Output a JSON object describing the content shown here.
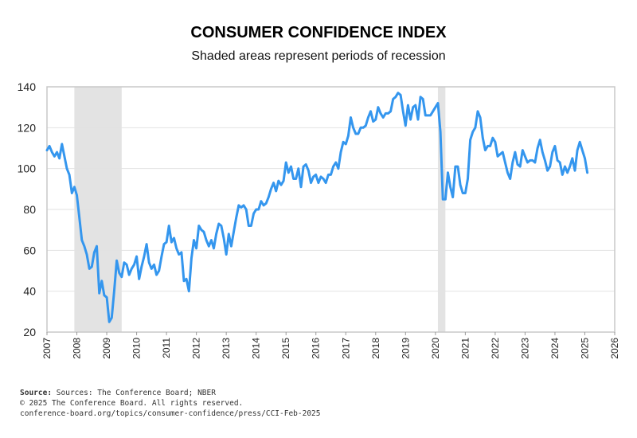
{
  "chart_data": {
    "type": "line",
    "title": "CONSUMER CONFIDENCE INDEX",
    "subtitle": "Shaded areas represent periods of recession",
    "xlabel": "",
    "ylabel": "",
    "xlim": [
      2007,
      2026
    ],
    "ylim": [
      20,
      140
    ],
    "x_ticks": [
      "2007",
      "2008",
      "2009",
      "2010",
      "2011",
      "2012",
      "2013",
      "2014",
      "2015",
      "2016",
      "2017",
      "2018",
      "2019",
      "2020",
      "2021",
      "2022",
      "2023",
      "2024",
      "2025",
      "2026"
    ],
    "y_ticks": [
      20,
      40,
      60,
      80,
      100,
      120,
      140
    ],
    "grid": "horizontal",
    "line_color": "#3496EE",
    "recession_color": "#E3E3E3",
    "recessions": [
      [
        "2007-12",
        "2009-06"
      ],
      [
        "2020-02",
        "2020-04"
      ]
    ],
    "points": [
      [
        "2007-01",
        109
      ],
      [
        "2007-02",
        111
      ],
      [
        "2007-03",
        108
      ],
      [
        "2007-04",
        106
      ],
      [
        "2007-05",
        108
      ],
      [
        "2007-06",
        105
      ],
      [
        "2007-07",
        112
      ],
      [
        "2007-08",
        106
      ],
      [
        "2007-09",
        100
      ],
      [
        "2007-10",
        97
      ],
      [
        "2007-11",
        88
      ],
      [
        "2007-12",
        91
      ],
      [
        "2008-01",
        87
      ],
      [
        "2008-02",
        76
      ],
      [
        "2008-03",
        65
      ],
      [
        "2008-04",
        62
      ],
      [
        "2008-05",
        58
      ],
      [
        "2008-06",
        51
      ],
      [
        "2008-07",
        52
      ],
      [
        "2008-08",
        59
      ],
      [
        "2008-09",
        62
      ],
      [
        "2008-10",
        39
      ],
      [
        "2008-11",
        45
      ],
      [
        "2008-12",
        38
      ],
      [
        "2009-01",
        37
      ],
      [
        "2009-02",
        25
      ],
      [
        "2009-03",
        27
      ],
      [
        "2009-04",
        40
      ],
      [
        "2009-05",
        55
      ],
      [
        "2009-06",
        49
      ],
      [
        "2009-07",
        47
      ],
      [
        "2009-08",
        54
      ],
      [
        "2009-09",
        53
      ],
      [
        "2009-10",
        48
      ],
      [
        "2009-11",
        51
      ],
      [
        "2009-12",
        53
      ],
      [
        "2010-01",
        57
      ],
      [
        "2010-02",
        46
      ],
      [
        "2010-03",
        52
      ],
      [
        "2010-04",
        57
      ],
      [
        "2010-05",
        63
      ],
      [
        "2010-06",
        54
      ],
      [
        "2010-07",
        51
      ],
      [
        "2010-08",
        53
      ],
      [
        "2010-09",
        48
      ],
      [
        "2010-10",
        50
      ],
      [
        "2010-11",
        57
      ],
      [
        "2010-12",
        63
      ],
      [
        "2011-01",
        64
      ],
      [
        "2011-02",
        72
      ],
      [
        "2011-03",
        64
      ],
      [
        "2011-04",
        66
      ],
      [
        "2011-05",
        61
      ],
      [
        "2011-06",
        58
      ],
      [
        "2011-07",
        59
      ],
      [
        "2011-08",
        45
      ],
      [
        "2011-09",
        46
      ],
      [
        "2011-10",
        40
      ],
      [
        "2011-11",
        56
      ],
      [
        "2011-12",
        65
      ],
      [
        "2012-01",
        61
      ],
      [
        "2012-02",
        72
      ],
      [
        "2012-03",
        70
      ],
      [
        "2012-04",
        69
      ],
      [
        "2012-05",
        65
      ],
      [
        "2012-06",
        62
      ],
      [
        "2012-07",
        65
      ],
      [
        "2012-08",
        61
      ],
      [
        "2012-09",
        68
      ],
      [
        "2012-10",
        73
      ],
      [
        "2012-11",
        72
      ],
      [
        "2012-12",
        66
      ],
      [
        "2013-01",
        58
      ],
      [
        "2013-02",
        68
      ],
      [
        "2013-03",
        62
      ],
      [
        "2013-04",
        69
      ],
      [
        "2013-05",
        76
      ],
      [
        "2013-06",
        82
      ],
      [
        "2013-07",
        81
      ],
      [
        "2013-08",
        82
      ],
      [
        "2013-09",
        80
      ],
      [
        "2013-10",
        72
      ],
      [
        "2013-11",
        72
      ],
      [
        "2013-12",
        78
      ],
      [
        "2014-01",
        80
      ],
      [
        "2014-02",
        80
      ],
      [
        "2014-03",
        84
      ],
      [
        "2014-04",
        82
      ],
      [
        "2014-05",
        83
      ],
      [
        "2014-06",
        86
      ],
      [
        "2014-07",
        90
      ],
      [
        "2014-08",
        93
      ],
      [
        "2014-09",
        89
      ],
      [
        "2014-10",
        94
      ],
      [
        "2014-11",
        92
      ],
      [
        "2014-12",
        94
      ],
      [
        "2015-01",
        103
      ],
      [
        "2015-02",
        98
      ],
      [
        "2015-03",
        101
      ],
      [
        "2015-04",
        95
      ],
      [
        "2015-05",
        95
      ],
      [
        "2015-06",
        100
      ],
      [
        "2015-07",
        91
      ],
      [
        "2015-08",
        101
      ],
      [
        "2015-09",
        102
      ],
      [
        "2015-10",
        99
      ],
      [
        "2015-11",
        93
      ],
      [
        "2015-12",
        96
      ],
      [
        "2016-01",
        97
      ],
      [
        "2016-02",
        93
      ],
      [
        "2016-03",
        96
      ],
      [
        "2016-04",
        95
      ],
      [
        "2016-05",
        93
      ],
      [
        "2016-06",
        97
      ],
      [
        "2016-07",
        97
      ],
      [
        "2016-08",
        101
      ],
      [
        "2016-09",
        103
      ],
      [
        "2016-10",
        100
      ],
      [
        "2016-11",
        108
      ],
      [
        "2016-12",
        113
      ],
      [
        "2017-01",
        112
      ],
      [
        "2017-02",
        116
      ],
      [
        "2017-03",
        125
      ],
      [
        "2017-04",
        120
      ],
      [
        "2017-05",
        117
      ],
      [
        "2017-06",
        117
      ],
      [
        "2017-07",
        120
      ],
      [
        "2017-08",
        120
      ],
      [
        "2017-09",
        121
      ],
      [
        "2017-10",
        125
      ],
      [
        "2017-11",
        128
      ],
      [
        "2017-12",
        123
      ],
      [
        "2018-01",
        124
      ],
      [
        "2018-02",
        130
      ],
      [
        "2018-03",
        127
      ],
      [
        "2018-04",
        125
      ],
      [
        "2018-05",
        127
      ],
      [
        "2018-06",
        127
      ],
      [
        "2018-07",
        128
      ],
      [
        "2018-08",
        134
      ],
      [
        "2018-09",
        135
      ],
      [
        "2018-10",
        137
      ],
      [
        "2018-11",
        136
      ],
      [
        "2018-12",
        128
      ],
      [
        "2019-01",
        121
      ],
      [
        "2019-02",
        131
      ],
      [
        "2019-03",
        124
      ],
      [
        "2019-04",
        130
      ],
      [
        "2019-05",
        131
      ],
      [
        "2019-06",
        124
      ],
      [
        "2019-07",
        135
      ],
      [
        "2019-08",
        134
      ],
      [
        "2019-09",
        126
      ],
      [
        "2019-10",
        126
      ],
      [
        "2019-11",
        126
      ],
      [
        "2019-12",
        128
      ],
      [
        "2020-01",
        130
      ],
      [
        "2020-02",
        132
      ],
      [
        "2020-03",
        118
      ],
      [
        "2020-04",
        85
      ],
      [
        "2020-05",
        85
      ],
      [
        "2020-06",
        98
      ],
      [
        "2020-07",
        91
      ],
      [
        "2020-08",
        86
      ],
      [
        "2020-09",
        101
      ],
      [
        "2020-10",
        101
      ],
      [
        "2020-11",
        92
      ],
      [
        "2020-12",
        88
      ],
      [
        "2021-01",
        88
      ],
      [
        "2021-02",
        95
      ],
      [
        "2021-03",
        114
      ],
      [
        "2021-04",
        118
      ],
      [
        "2021-05",
        120
      ],
      [
        "2021-06",
        128
      ],
      [
        "2021-07",
        125
      ],
      [
        "2021-08",
        115
      ],
      [
        "2021-09",
        109
      ],
      [
        "2021-10",
        111
      ],
      [
        "2021-11",
        111
      ],
      [
        "2021-12",
        115
      ],
      [
        "2022-01",
        113
      ],
      [
        "2022-02",
        106
      ],
      [
        "2022-03",
        107
      ],
      [
        "2022-04",
        108
      ],
      [
        "2022-05",
        103
      ],
      [
        "2022-06",
        98
      ],
      [
        "2022-07",
        95
      ],
      [
        "2022-08",
        103
      ],
      [
        "2022-09",
        108
      ],
      [
        "2022-10",
        102
      ],
      [
        "2022-11",
        101
      ],
      [
        "2022-12",
        109
      ],
      [
        "2023-01",
        106
      ],
      [
        "2023-02",
        103
      ],
      [
        "2023-03",
        104
      ],
      [
        "2023-04",
        104
      ],
      [
        "2023-05",
        103
      ],
      [
        "2023-06",
        110
      ],
      [
        "2023-07",
        114
      ],
      [
        "2023-08",
        108
      ],
      [
        "2023-09",
        104
      ],
      [
        "2023-10",
        99
      ],
      [
        "2023-11",
        101
      ],
      [
        "2023-12",
        108
      ],
      [
        "2024-01",
        111
      ],
      [
        "2024-02",
        104
      ],
      [
        "2024-03",
        103
      ],
      [
        "2024-04",
        97
      ],
      [
        "2024-05",
        101
      ],
      [
        "2024-06",
        98
      ],
      [
        "2024-07",
        101
      ],
      [
        "2024-08",
        105
      ],
      [
        "2024-09",
        99
      ],
      [
        "2024-10",
        109
      ],
      [
        "2024-11",
        113
      ],
      [
        "2024-12",
        109
      ],
      [
        "2025-01",
        105
      ],
      [
        "2025-02",
        98
      ]
    ]
  },
  "footer": {
    "source_label": "Source:",
    "source_text": "Sources: The Conference Board; NBER",
    "copyright": "© 2025 The Conference Board. All rights reserved.",
    "url": "conference-board.org/topics/consumer-confidence/press/CCI-Feb-2025"
  }
}
